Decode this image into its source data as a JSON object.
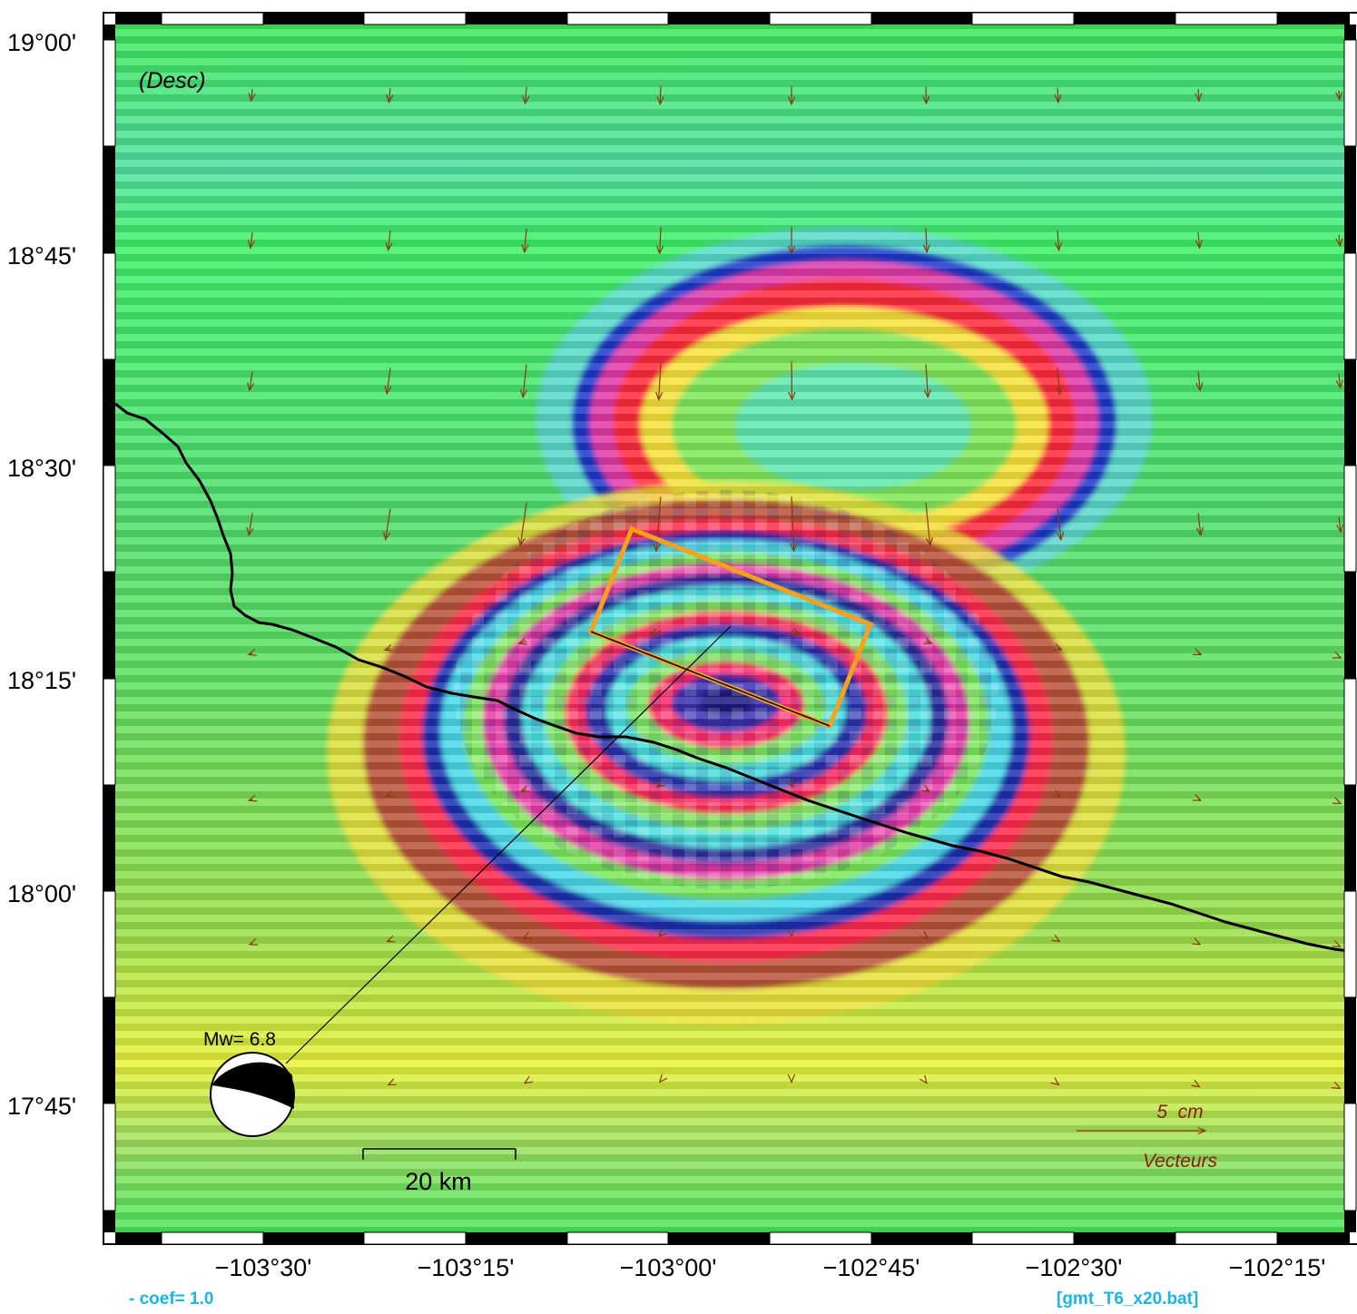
{
  "map": {
    "panel_label": "(Desc)",
    "y_ticks": [
      "19°00'",
      "18°45'",
      "18°30'",
      "18°15'",
      "18°00'",
      "17°45'"
    ],
    "x_ticks": [
      "−103°30'",
      "−103°15'",
      "−103°00'",
      "−102°45'",
      "−102°30'",
      "−102°15'"
    ],
    "magnitude_label": "Mw= 6.8",
    "scale_bar_label": "20 km",
    "vector_scale_label": "5  cm",
    "vector_legend_label": "Vecteurs",
    "colors": {
      "coastline": "#000000",
      "fault_outline": "#f7a01c",
      "vectors": "#8b3a0c",
      "footer": "#19b6ea"
    }
  },
  "footer": {
    "coef_text": "- coef=  1.0",
    "script_text": "[gmt_T6_x20.bat]"
  }
}
